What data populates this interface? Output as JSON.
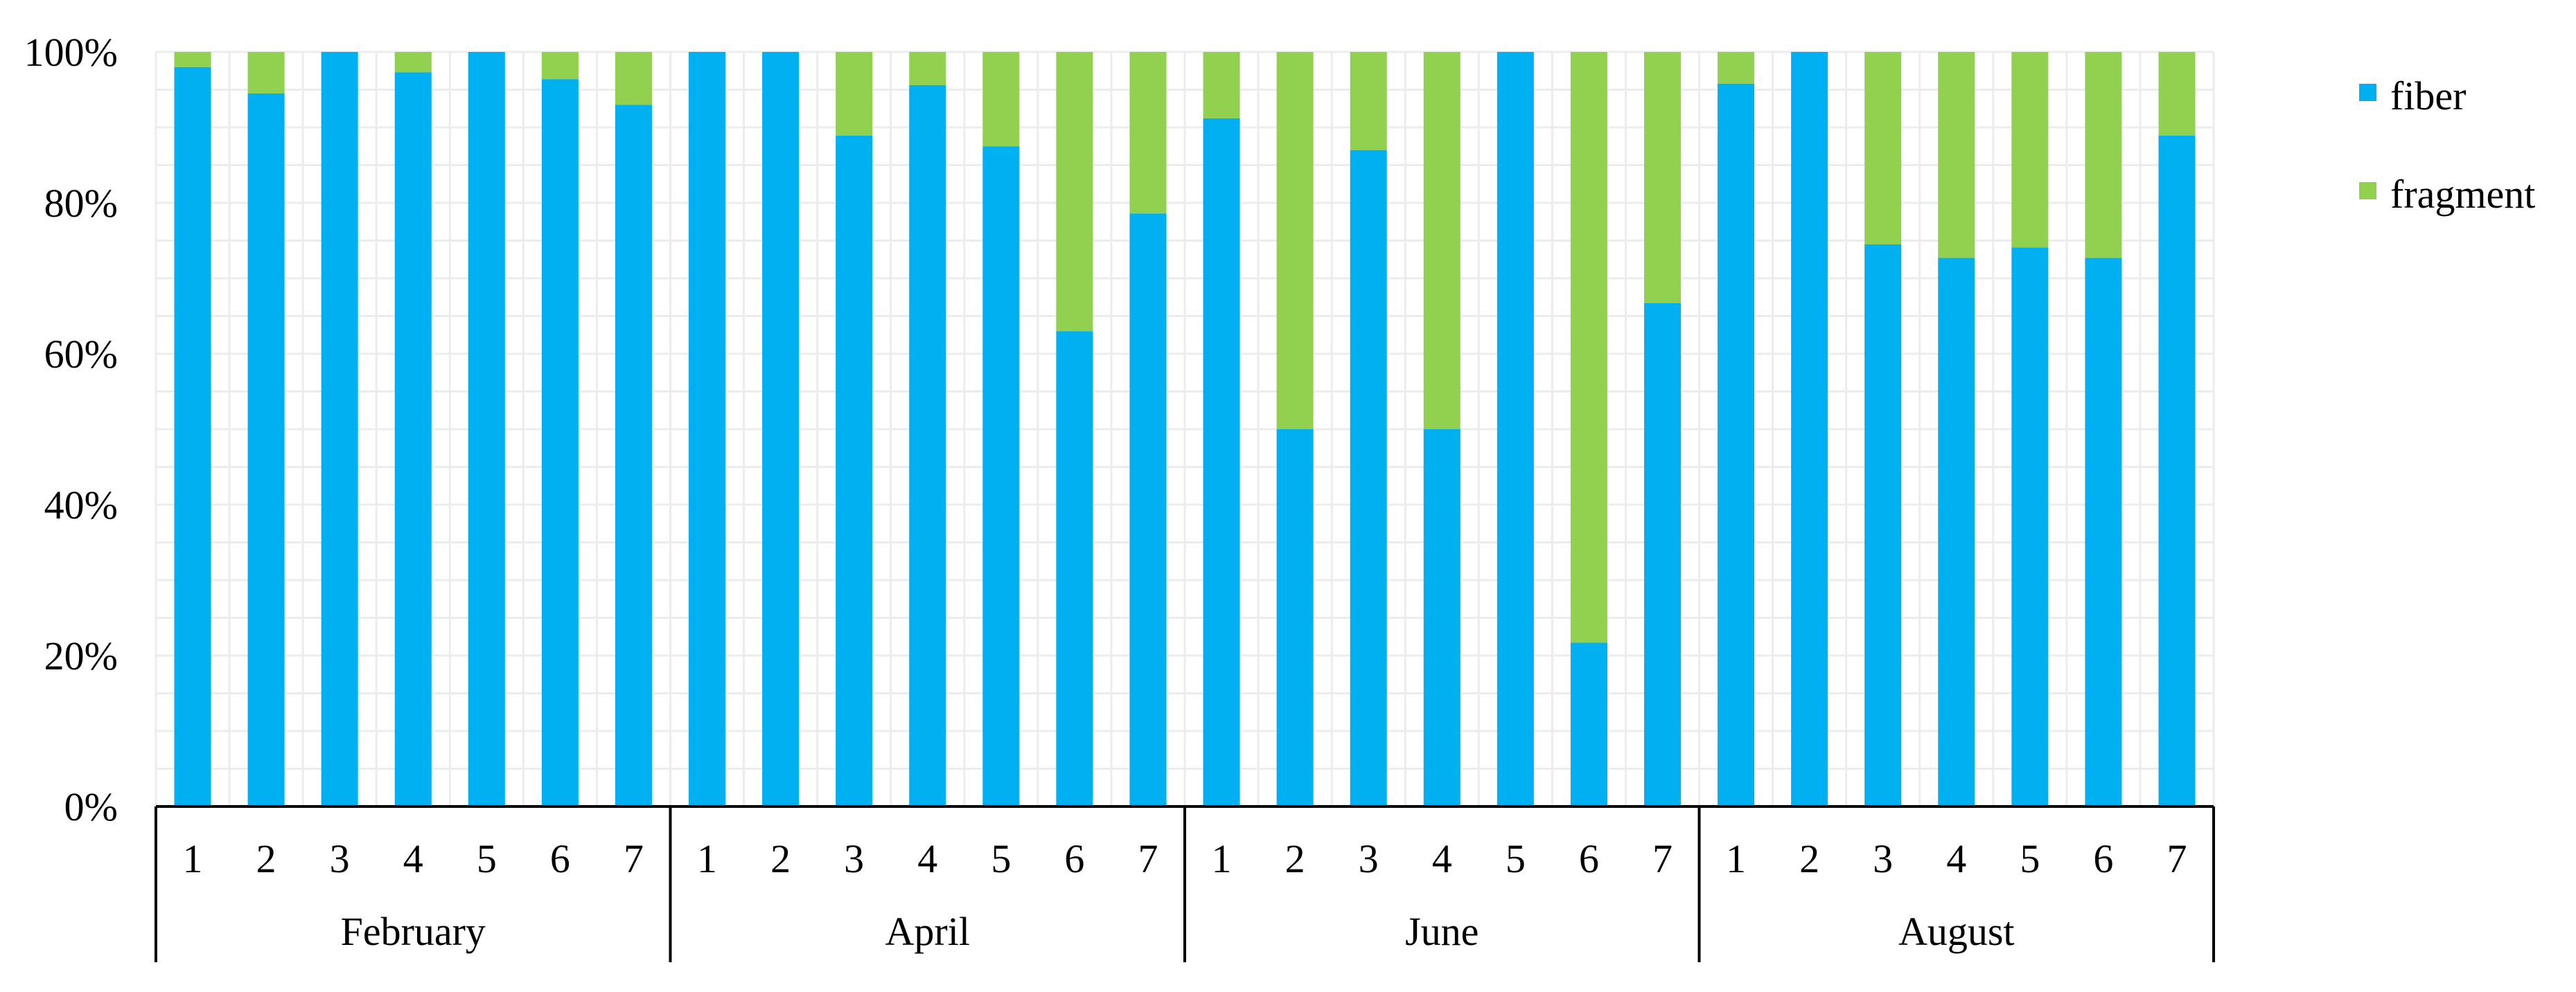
{
  "chart_data": {
    "type": "bar",
    "stacked": true,
    "percent": true,
    "groups": [
      {
        "name": "February",
        "categories": [
          "1",
          "2",
          "3",
          "4",
          "5",
          "6",
          "7"
        ]
      },
      {
        "name": "April",
        "categories": [
          "1",
          "2",
          "3",
          "4",
          "5",
          "6",
          "7"
        ]
      },
      {
        "name": "June",
        "categories": [
          "1",
          "2",
          "3",
          "4",
          "5",
          "6",
          "7"
        ]
      },
      {
        "name": "August",
        "categories": [
          "1",
          "2",
          "3",
          "4",
          "5",
          "6",
          "7"
        ]
      }
    ],
    "series": [
      {
        "name": "fiber",
        "color": "#00B0F0",
        "values": [
          98,
          94.5,
          100,
          97.3,
          100,
          96.4,
          93,
          100,
          100,
          88.9,
          95.6,
          87.5,
          63,
          78.6,
          91.2,
          50,
          87,
          50,
          100,
          21.7,
          66.7,
          95.8,
          100,
          74.5,
          72.7,
          74.1,
          72.7,
          88.9
        ]
      },
      {
        "name": "fragment",
        "color": "#92D050",
        "values": [
          2,
          5.5,
          0,
          2.7,
          0,
          3.6,
          7,
          0,
          0,
          11.1,
          4.4,
          12.5,
          37,
          21.4,
          8.8,
          50,
          13,
          50,
          0,
          78.3,
          33.3,
          4.2,
          0,
          25.5,
          27.3,
          25.9,
          27.3,
          11.1
        ]
      }
    ],
    "yticks": [
      "0%",
      "20%",
      "40%",
      "60%",
      "80%",
      "100%"
    ],
    "ylim": [
      0,
      100
    ],
    "grid": true,
    "legend_position": "right"
  }
}
